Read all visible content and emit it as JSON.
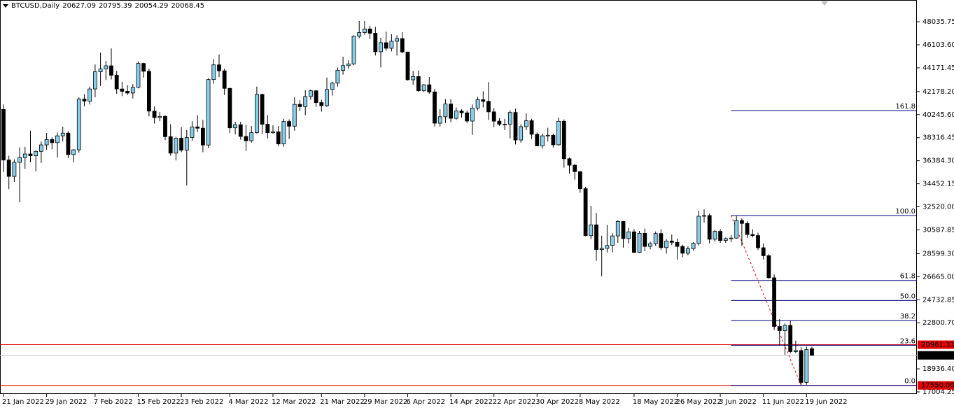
{
  "chart_data": {
    "type": "candlestick",
    "title": "BTCUSD,Daily",
    "x_labels": [
      "21 Jan 2022",
      "29 Jan 2022",
      "7 Feb 2022",
      "15 Feb 2022",
      "23 Feb 2022",
      "4 Mar 2022",
      "12 Mar 2022",
      "21 Mar 2022",
      "29 Mar 2022",
      "6 Apr 2022",
      "14 Apr 2022",
      "22 Apr 2022",
      "30 Apr 2022",
      "8 May 2022",
      "18 May 2022",
      "26 May 2022",
      "3 Jun 2022",
      "11 Jun 2022",
      "19 Jun 2022"
    ],
    "ylim": [
      16828,
      49740
    ],
    "yticks": [
      48035.75,
      {
        "value": 46103.6,
        "label": "46103.60"
      },
      44171.45,
      {
        "value": 42178.2,
        "label": "42178.20"
      },
      {
        "value": 40245.6,
        "label": "40245.60"
      },
      38316.45,
      {
        "value": 36384.3,
        "label": "36384.30"
      },
      34452.15,
      {
        "value": 32520,
        "label": "32520.00"
      },
      30587.85,
      {
        "value": 28599.3,
        "label": "28599.30"
      },
      {
        "value": 26665,
        "label": "26665.00"
      },
      24732.85,
      {
        "value": 22800.7,
        "label": "22800.70"
      },
      {
        "value": 18936.4,
        "label": "18936.40"
      },
      17004.25
    ],
    "up_color": "#87ceeb",
    "down_color": "#000000",
    "hlines": [
      {
        "value": 20961.31,
        "color": "#e00000"
      },
      {
        "value": 17550,
        "label": "17550.00",
        "color": "#e00000"
      }
    ],
    "fibonacci": {
      "high": 31790,
      "low": 17550,
      "color": "#000080",
      "levels": [
        161.8,
        {
          "value": 100,
          "label": "100.0"
        },
        61.8,
        {
          "value": 50,
          "label": "50.0"
        },
        38.2,
        23.6,
        {
          "value": 0,
          "label": "0.0"
        }
      ]
    },
    "ohlc": [
      [
        40680,
        41100,
        35440,
        36440
      ],
      [
        36440,
        36800,
        34000,
        35070
      ],
      [
        35070,
        36500,
        34600,
        36250
      ],
      [
        36250,
        37500,
        32900,
        36650
      ],
      [
        36650,
        37550,
        35700,
        36950
      ],
      [
        36950,
        38900,
        36250,
        36800
      ],
      [
        36800,
        37250,
        35500,
        37170
      ],
      [
        37170,
        38000,
        36200,
        37710
      ],
      [
        37710,
        38700,
        37300,
        38160
      ],
      [
        38160,
        38350,
        37350,
        37900
      ],
      [
        37900,
        38750,
        36650,
        38470
      ],
      [
        38470,
        39250,
        38000,
        38700
      ],
      [
        38700,
        38850,
        36600,
        36900
      ],
      [
        36900,
        37350,
        36250,
        37300
      ],
      [
        37300,
        41700,
        37050,
        41550
      ],
      [
        41550,
        41950,
        40950,
        41380
      ],
      [
        41380,
        42600,
        41100,
        42400
      ],
      [
        42400,
        44450,
        41700,
        43840
      ],
      [
        43840,
        45450,
        42650,
        44080
      ],
      [
        44080,
        44750,
        43150,
        44340
      ],
      [
        44340,
        45800,
        43200,
        43550
      ],
      [
        43550,
        43900,
        42000,
        42400
      ],
      [
        42400,
        43000,
        41800,
        42200
      ],
      [
        42200,
        42700,
        41900,
        42060
      ],
      [
        42060,
        42800,
        41600,
        42540
      ],
      [
        42540,
        44700,
        42450,
        44540
      ],
      [
        44540,
        44600,
        43350,
        43880
      ],
      [
        43880,
        44100,
        40100,
        40540
      ],
      [
        40540,
        40950,
        39500,
        40000
      ],
      [
        40000,
        40450,
        39700,
        40100
      ],
      [
        40100,
        40200,
        38100,
        38400
      ],
      [
        38400,
        39450,
        36800,
        37020
      ],
      [
        37020,
        38400,
        36400,
        38270
      ],
      [
        38270,
        39200,
        37100,
        37270
      ],
      [
        37270,
        38950,
        34300,
        38330
      ],
      [
        38330,
        39700,
        38050,
        39220
      ],
      [
        39220,
        40200,
        38800,
        39110
      ],
      [
        39110,
        39800,
        37100,
        37700
      ],
      [
        37700,
        43300,
        37450,
        43190
      ],
      [
        43190,
        44900,
        42850,
        44420
      ],
      [
        44420,
        45300,
        43400,
        43920
      ],
      [
        43920,
        44100,
        41900,
        42450
      ],
      [
        42450,
        42500,
        38700,
        39140
      ],
      [
        39140,
        39650,
        38600,
        39400
      ],
      [
        39400,
        39650,
        38150,
        38420
      ],
      [
        38420,
        39400,
        37200,
        38060
      ],
      [
        38060,
        39300,
        37900,
        38740
      ],
      [
        38740,
        42600,
        38650,
        41940
      ],
      [
        41940,
        42000,
        38600,
        39440
      ],
      [
        39440,
        40200,
        38250,
        38730
      ],
      [
        38730,
        39350,
        38650,
        38810
      ],
      [
        38810,
        39300,
        37600,
        37790
      ],
      [
        37790,
        39900,
        37550,
        39670
      ],
      [
        39670,
        39850,
        38200,
        39280
      ],
      [
        39280,
        41700,
        38900,
        41110
      ],
      [
        41110,
        41450,
        40550,
        40920
      ],
      [
        40920,
        42300,
        40200,
        41770
      ],
      [
        41770,
        42350,
        41500,
        42250
      ],
      [
        42250,
        42300,
        40900,
        41260
      ],
      [
        41260,
        41500,
        40500,
        41000
      ],
      [
        41000,
        43350,
        40900,
        42360
      ],
      [
        42360,
        43000,
        41850,
        42890
      ],
      [
        42890,
        44200,
        42600,
        43960
      ],
      [
        43960,
        45100,
        43600,
        44350
      ],
      [
        44350,
        44800,
        44100,
        44500
      ],
      [
        44500,
        46900,
        44400,
        46820
      ],
      [
        46820,
        48100,
        46650,
        47130
      ],
      [
        47130,
        48100,
        46950,
        47430
      ],
      [
        47430,
        47700,
        46600,
        47070
      ],
      [
        47070,
        47600,
        45200,
        45520
      ],
      [
        45520,
        46700,
        44200,
        46280
      ],
      [
        46280,
        47200,
        45600,
        45810
      ],
      [
        45810,
        47000,
        45550,
        46400
      ],
      [
        46400,
        46900,
        45200,
        46620
      ],
      [
        46620,
        47150,
        45400,
        45500
      ],
      [
        45500,
        45500,
        43100,
        43170
      ],
      [
        43170,
        43900,
        42750,
        43440
      ],
      [
        43440,
        43950,
        42150,
        42250
      ],
      [
        42250,
        42800,
        42150,
        42750
      ],
      [
        42750,
        43400,
        42000,
        42150
      ],
      [
        42150,
        42400,
        39250,
        39530
      ],
      [
        39530,
        40700,
        39250,
        40070
      ],
      [
        40070,
        41550,
        39550,
        41140
      ],
      [
        41140,
        41550,
        39600,
        39940
      ],
      [
        39940,
        40850,
        39800,
        40550
      ],
      [
        40550,
        40700,
        40000,
        40400
      ],
      [
        40400,
        40600,
        39550,
        39710
      ],
      [
        39710,
        41100,
        38550,
        40800
      ],
      [
        40800,
        41750,
        40600,
        41500
      ],
      [
        41500,
        42200,
        40850,
        41360
      ],
      [
        41360,
        42970,
        39800,
        40480
      ],
      [
        40480,
        40800,
        39200,
        39700
      ],
      [
        39700,
        39950,
        39300,
        39450
      ],
      [
        39450,
        39900,
        38950,
        39450
      ],
      [
        39450,
        40600,
        38250,
        40430
      ],
      [
        40430,
        40750,
        37750,
        38120
      ],
      [
        38120,
        39450,
        37900,
        39240
      ],
      [
        39240,
        40350,
        38950,
        39740
      ],
      [
        39740,
        39900,
        38200,
        38600
      ],
      [
        38600,
        38750,
        37600,
        37630
      ],
      [
        37630,
        38650,
        37400,
        38470
      ],
      [
        38470,
        39150,
        38000,
        38520
      ],
      [
        38520,
        38650,
        37500,
        37720
      ],
      [
        37720,
        40000,
        37650,
        39690
      ],
      [
        39690,
        39850,
        35800,
        36550
      ],
      [
        36550,
        36650,
        35300,
        36010
      ],
      [
        36010,
        36100,
        34800,
        35470
      ],
      [
        35470,
        35500,
        33700,
        34040
      ],
      [
        34040,
        34200,
        30050,
        30100
      ],
      [
        30100,
        32600,
        29800,
        31010
      ],
      [
        31010,
        32000,
        28000,
        28940
      ],
      [
        28940,
        30100,
        26700,
        29040
      ],
      [
        29040,
        31000,
        28700,
        29280
      ],
      [
        29280,
        30300,
        28700,
        30080
      ],
      [
        30080,
        31400,
        29500,
        31300
      ],
      [
        31300,
        31300,
        29100,
        29860
      ],
      [
        29860,
        30750,
        29450,
        30420
      ],
      [
        30420,
        30650,
        28650,
        28700
      ],
      [
        28700,
        30500,
        28650,
        30300
      ],
      [
        30300,
        30700,
        28800,
        29200
      ],
      [
        29200,
        29600,
        28950,
        29430
      ],
      [
        29430,
        30450,
        29250,
        30280
      ],
      [
        30280,
        30650,
        28900,
        29100
      ],
      [
        29100,
        29800,
        28600,
        29650
      ],
      [
        29650,
        30200,
        29300,
        29540
      ],
      [
        29540,
        29850,
        28100,
        29200
      ],
      [
        29200,
        29350,
        28300,
        28630
      ],
      [
        28630,
        29200,
        28450,
        29020
      ],
      [
        29020,
        29550,
        28850,
        29450
      ],
      [
        29450,
        32200,
        29300,
        31730
      ],
      [
        31730,
        32300,
        31200,
        31790
      ],
      [
        31790,
        31950,
        29450,
        29800
      ],
      [
        29800,
        30600,
        29600,
        30460
      ],
      [
        30460,
        30650,
        29500,
        29700
      ],
      [
        29700,
        29950,
        29500,
        29860
      ],
      [
        29860,
        30150,
        29550,
        29900
      ],
      [
        29900,
        31750,
        29850,
        31370
      ],
      [
        31370,
        31550,
        29250,
        31130
      ],
      [
        31130,
        31300,
        29900,
        30200
      ],
      [
        30200,
        30650,
        29950,
        30110
      ],
      [
        30110,
        30350,
        28900,
        29090
      ],
      [
        29090,
        29450,
        28100,
        28420
      ],
      [
        28420,
        28550,
        26500,
        26570
      ],
      [
        26570,
        26850,
        22200,
        22490
      ],
      [
        22490,
        23100,
        20900,
        22140
      ],
      [
        22140,
        22750,
        20100,
        22580
      ],
      [
        22580,
        22950,
        20250,
        20380
      ],
      [
        20380,
        21300,
        20250,
        20470
      ],
      [
        20470,
        20750,
        17550,
        17800
      ],
      [
        17800,
        20800,
        17600,
        20550
      ],
      [
        20627.09,
        20795.39,
        20054.29,
        20068.45
      ]
    ]
  }
}
